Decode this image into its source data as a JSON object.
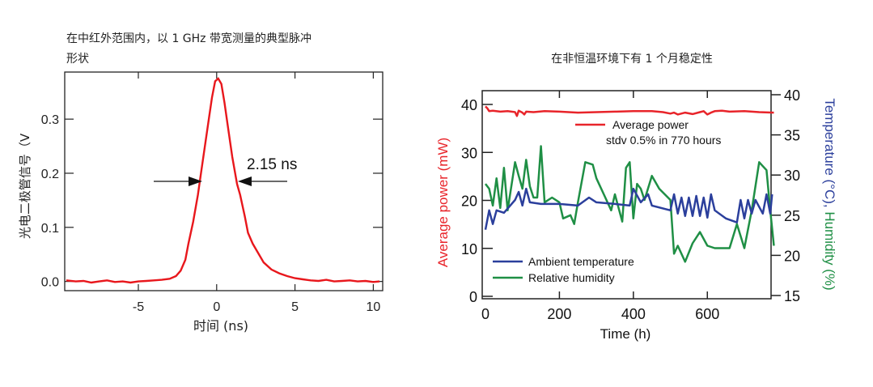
{
  "chart_data": [
    {
      "type": "line",
      "title": "在中红外范围内，以 1 GHz 带宽测量的典型脉冲形状",
      "title_lines": [
        "在中红外范围内，以 1 GHz 带宽测量的典型脉冲",
        "形状"
      ],
      "xlabel": "时间 (ns)",
      "ylabel": "光电二极管信号（V",
      "xlim": [
        -9.7,
        10.6
      ],
      "ylim": [
        -0.017,
        0.387
      ],
      "xticks": [
        "-5",
        "0",
        "5",
        "10"
      ],
      "xtick_values": [
        -5,
        0,
        5,
        10
      ],
      "yticks": [
        "0.0",
        "0.1",
        "0.2",
        "0.3"
      ],
      "ytick_values": [
        0,
        0.1,
        0.2,
        0.3
      ],
      "annotation": "2.15 ns",
      "color": "#e8171c",
      "series": [
        {
          "x": [
            -9.6,
            -9,
            -8.5,
            -8,
            -7.5,
            -7,
            -6.5,
            -6,
            -5.5,
            -5,
            -4.5,
            -4,
            -3.5,
            -3,
            -2.6,
            -2.3,
            -2,
            -1.8,
            -1.5,
            -1.2,
            -1,
            -0.7,
            -0.5,
            -0.3,
            -0.1,
            0.1,
            0.3,
            0.5,
            0.7,
            1,
            1.3,
            1.5,
            1.8,
            2,
            2.3,
            2.6,
            3,
            3.5,
            4,
            4.5,
            5,
            5.5,
            6,
            6.5,
            7,
            7.5,
            8,
            8.5,
            9,
            9.5,
            10,
            10.4
          ],
          "y": [
            0.002,
            0.0,
            0.001,
            -0.002,
            0.0,
            0.002,
            -0.001,
            0.0,
            -0.002,
            0.0,
            0.001,
            0.002,
            0.003,
            0.005,
            0.01,
            0.02,
            0.04,
            0.07,
            0.11,
            0.16,
            0.2,
            0.26,
            0.3,
            0.34,
            0.37,
            0.375,
            0.365,
            0.33,
            0.29,
            0.23,
            0.18,
            0.16,
            0.12,
            0.09,
            0.07,
            0.055,
            0.035,
            0.022,
            0.015,
            0.01,
            0.006,
            0.004,
            0.002,
            0.001,
            0.003,
            0.0,
            0.001,
            0.002,
            0.0,
            0.001,
            -0.001,
            0.0
          ]
        }
      ]
    },
    {
      "type": "line",
      "title": "在非恒温环境下有 1 个月稳定性",
      "xlabel": "Time (h)",
      "ylabel": "Average power (mW)",
      "y2label_parts": [
        "Temperature (°C), ",
        "Humidity (%)"
      ],
      "xlim": [
        0,
        781
      ],
      "ylim": [
        0,
        41
      ],
      "y2lim": [
        15,
        40.3
      ],
      "xticks": [
        "0",
        "200",
        "400",
        "600"
      ],
      "xtick_values": [
        0,
        200,
        400,
        600
      ],
      "yticks": [
        "0",
        "10",
        "20",
        "30",
        "40"
      ],
      "ytick_values": [
        0,
        10,
        20,
        30,
        40
      ],
      "y2ticks": [
        "15",
        "20",
        "25",
        "30",
        "35",
        "40"
      ],
      "y2tick_values": [
        15,
        20,
        25,
        30,
        35,
        40
      ],
      "legend_top": {
        "label": "Average power",
        "note": "stdv  0.5% in 770 hours"
      },
      "series": [
        {
          "name": "Average power",
          "axis": "left",
          "color": "#e8242a",
          "x": [
            0,
            5,
            10,
            20,
            40,
            60,
            80,
            85,
            90,
            100,
            105,
            110,
            130,
            160,
            200,
            250,
            300,
            350,
            400,
            450,
            480,
            500,
            510,
            520,
            540,
            560,
            580,
            590,
            600,
            610,
            620,
            640,
            660,
            700,
            740,
            780
          ],
          "y": [
            39.6,
            39.2,
            38.6,
            38.7,
            38.5,
            38.6,
            38.4,
            37.6,
            38.7,
            38.3,
            37.9,
            38.5,
            38.4,
            38.6,
            38.5,
            38.3,
            38.4,
            38.5,
            38.6,
            38.6,
            38.4,
            38.1,
            38.3,
            37.9,
            38.3,
            38.0,
            38.4,
            38.6,
            37.9,
            38.3,
            38.6,
            38.7,
            38.5,
            38.6,
            38.4,
            38.3
          ]
        },
        {
          "name": "Ambient temperature",
          "axis": "right",
          "color": "#2b3f9c",
          "x": [
            0,
            10,
            20,
            30,
            50,
            80,
            90,
            100,
            110,
            120,
            150,
            200,
            250,
            280,
            300,
            350,
            390,
            400,
            420,
            440,
            450,
            500,
            510,
            520,
            530,
            540,
            550,
            560,
            570,
            580,
            590,
            600,
            610,
            620,
            650,
            680,
            690,
            700,
            710,
            720,
            730,
            750,
            760,
            770,
            775
          ],
          "y": [
            23.2,
            25.6,
            23.9,
            25.6,
            25.3,
            26.9,
            27.9,
            26.2,
            28.3,
            26.6,
            26.4,
            26.4,
            26.2,
            27.2,
            26.6,
            26.4,
            26.2,
            28.3,
            26.6,
            27.6,
            26.2,
            25.6,
            27.6,
            25.2,
            27.2,
            24.9,
            27.2,
            24.9,
            27.4,
            24.9,
            27.2,
            24.7,
            27.6,
            25.6,
            24.6,
            24.1,
            26.9,
            24.6,
            26.9,
            25.2,
            26.9,
            25.2,
            27.6,
            25.2,
            27.6
          ]
        },
        {
          "name": "Relative humidity",
          "axis": "right",
          "color": "#1f8f45",
          "x": [
            0,
            10,
            20,
            30,
            40,
            50,
            60,
            80,
            90,
            100,
            110,
            120,
            130,
            140,
            150,
            160,
            180,
            200,
            210,
            230,
            240,
            250,
            270,
            290,
            300,
            320,
            340,
            350,
            370,
            380,
            390,
            400,
            410,
            420,
            430,
            450,
            470,
            500,
            510,
            520,
            540,
            560,
            580,
            600,
            620,
            660,
            680,
            700,
            720,
            740,
            760,
            770,
            780
          ],
          "y": [
            28.9,
            28.3,
            26.2,
            29.6,
            25.9,
            30.9,
            25.6,
            31.6,
            29.9,
            28.3,
            31.9,
            28.6,
            27.2,
            27.2,
            33.6,
            26.6,
            27.2,
            26.6,
            24.6,
            25.0,
            23.9,
            26.6,
            31.6,
            31.3,
            29.6,
            27.6,
            25.6,
            27.6,
            24.2,
            30.9,
            31.6,
            24.6,
            28.9,
            28.3,
            26.9,
            29.9,
            28.3,
            26.9,
            20.2,
            21.2,
            19.2,
            21.5,
            22.9,
            21.2,
            20.9,
            20.9,
            23.9,
            20.9,
            25.6,
            31.6,
            30.6,
            25.6,
            21.2
          ]
        }
      ],
      "legend_bottom": [
        "Ambient temperature",
        "Relative humidity"
      ]
    }
  ]
}
